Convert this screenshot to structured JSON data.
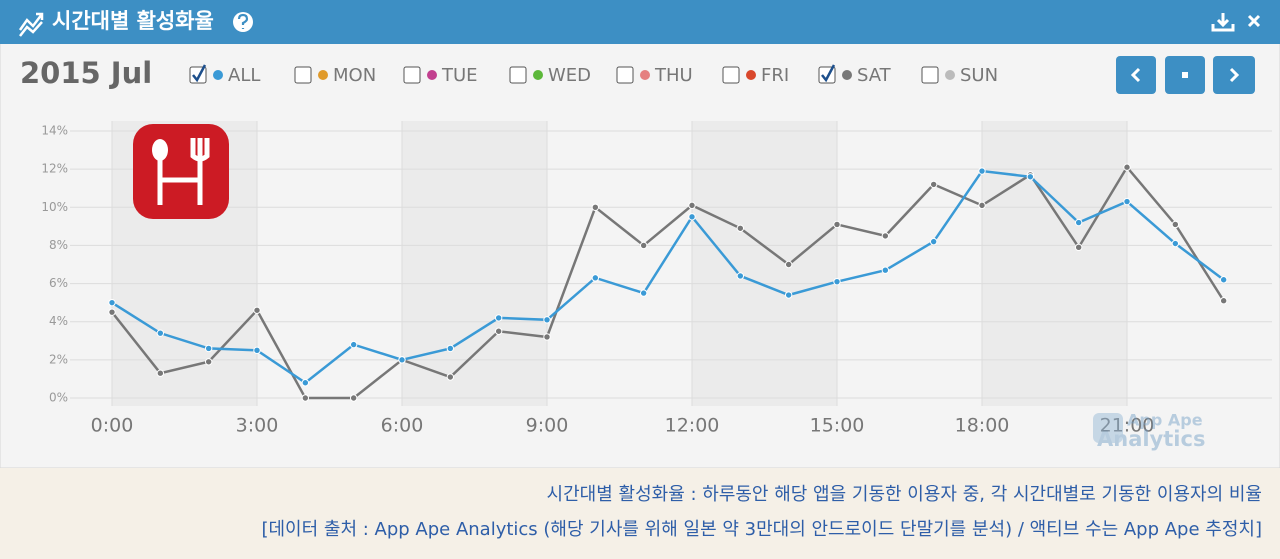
{
  "header": {
    "title": "시간대별 활성화율"
  },
  "period": "2015 Jul",
  "watermark": [
    "App Ape",
    "Analytics"
  ],
  "captions": [
    "시간대별 활성화율 : 하루동안 해당 앱을 기동한 이용자 중, 각 시간대별로 기동한 이용자의 비율",
    "[데이터 출처 : App Ape Analytics (해당 기사를 위해 일본 약 3만대의 안드로이드 단말기를 분석) / 액티브 수는 App Ape 추정치]"
  ],
  "chart_data": {
    "type": "line",
    "x": [
      0,
      1,
      2,
      3,
      4,
      5,
      6,
      7,
      8,
      9,
      10,
      11,
      12,
      13,
      14,
      15,
      16,
      17,
      18,
      19,
      20,
      21,
      22,
      23
    ],
    "xlim": [
      0,
      24
    ],
    "xticks": [
      {
        "value": 0,
        "label": "0:00"
      },
      {
        "value": 3,
        "label": "3:00"
      },
      {
        "value": 6,
        "label": "6:00"
      },
      {
        "value": 9,
        "label": "9:00"
      },
      {
        "value": 12,
        "label": "12:00"
      },
      {
        "value": 15,
        "label": "15:00"
      },
      {
        "value": 18,
        "label": "18:00"
      },
      {
        "value": 21,
        "label": "21:00"
      }
    ],
    "ylim": [
      0,
      14
    ],
    "yticks": [
      {
        "value": 0,
        "label": "0%"
      },
      {
        "value": 2,
        "label": "2%"
      },
      {
        "value": 4,
        "label": "4%"
      },
      {
        "value": 6,
        "label": "6%"
      },
      {
        "value": 8,
        "label": "8%"
      },
      {
        "value": 10,
        "label": "10%"
      },
      {
        "value": 12,
        "label": "12%"
      },
      {
        "value": 14,
        "label": "14%"
      }
    ],
    "grid": true,
    "series": [
      {
        "name": "ALL",
        "color": "#3a9ad6",
        "checked": true,
        "values": [
          5.0,
          3.4,
          2.6,
          2.5,
          0.8,
          2.8,
          2.0,
          2.6,
          4.2,
          4.1,
          6.3,
          5.5,
          9.5,
          6.4,
          5.4,
          6.1,
          6.7,
          8.2,
          11.9,
          11.6,
          9.2,
          10.3,
          8.1,
          6.2
        ]
      },
      {
        "name": "MON",
        "color": "#e09a2a",
        "checked": false
      },
      {
        "name": "TUE",
        "color": "#c2408f",
        "checked": false
      },
      {
        "name": "WED",
        "color": "#5cb83a",
        "checked": false
      },
      {
        "name": "THU",
        "color": "#e58080",
        "checked": false
      },
      {
        "name": "FRI",
        "color": "#d9472b",
        "checked": false
      },
      {
        "name": "SAT",
        "color": "#777777",
        "checked": true,
        "values": [
          4.5,
          1.3,
          1.9,
          4.6,
          0,
          0,
          2.0,
          1.1,
          3.5,
          3.2,
          10.0,
          8.0,
          10.1,
          8.9,
          7.0,
          9.1,
          8.5,
          11.2,
          10.1,
          11.7,
          7.9,
          12.1,
          9.1,
          5.1
        ]
      },
      {
        "name": "SUN",
        "color": "#bbbbbb",
        "checked": false
      }
    ]
  }
}
